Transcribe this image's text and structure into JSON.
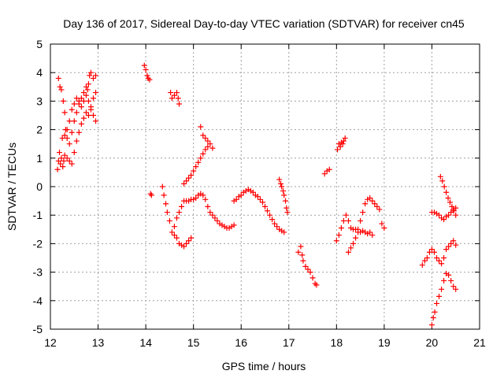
{
  "chart_data": {
    "type": "scatter",
    "title": "Day 136 of 2017, Sidereal Day-to-day VTEC variation (SDTVAR) for receiver cn45",
    "xlabel": "GPS time / hours",
    "ylabel": "SDTVAR / TECUs",
    "xlim": [
      12,
      21
    ],
    "ylim": [
      -5,
      5
    ],
    "xticks": [
      "12",
      "13",
      "14",
      "15",
      "16",
      "17",
      "18",
      "19",
      "20",
      "21"
    ],
    "yticks": [
      "-5",
      "-4",
      "-3",
      "-2",
      "-1",
      "0",
      "1",
      "2",
      "3",
      "4",
      "5"
    ],
    "grid": true,
    "marker": "plus",
    "color": "#ff0000",
    "series": [
      {
        "values": [
          [
            12.15,
            0.6
          ],
          [
            12.17,
            0.9
          ],
          [
            12.19,
            1.2
          ],
          [
            12.21,
            0.8
          ],
          [
            12.23,
            1.0
          ],
          [
            12.26,
            0.7
          ],
          [
            12.28,
            0.9
          ],
          [
            12.3,
            1.1
          ],
          [
            12.35,
            1.0
          ],
          [
            12.4,
            0.9
          ],
          [
            12.45,
            0.8
          ],
          [
            12.5,
            1.2
          ],
          [
            12.55,
            1.6
          ],
          [
            12.6,
            1.9
          ],
          [
            12.65,
            2.2
          ],
          [
            12.7,
            2.4
          ],
          [
            12.75,
            2.6
          ],
          [
            12.8,
            2.5
          ],
          [
            12.85,
            2.7
          ],
          [
            12.9,
            2.5
          ],
          [
            12.95,
            2.3
          ]
        ]
      },
      {
        "values": [
          [
            12.17,
            3.8
          ],
          [
            12.2,
            3.5
          ],
          [
            12.23,
            3.4
          ],
          [
            12.27,
            3.0
          ],
          [
            12.3,
            2.6
          ],
          [
            12.32,
            2.0
          ],
          [
            12.35,
            1.7
          ],
          [
            12.4,
            1.5
          ],
          [
            12.45,
            1.9
          ],
          [
            12.5,
            2.3
          ],
          [
            12.55,
            2.6
          ],
          [
            12.6,
            2.9
          ],
          [
            12.65,
            3.1
          ],
          [
            12.7,
            3.3
          ],
          [
            12.75,
            3.5
          ],
          [
            12.78,
            3.4
          ],
          [
            12.8,
            3.6
          ],
          [
            12.82,
            3.9
          ],
          [
            12.85,
            4.0
          ],
          [
            12.9,
            3.8
          ],
          [
            12.95,
            3.9
          ]
        ]
      },
      {
        "values": [
          [
            12.25,
            1.7
          ],
          [
            12.3,
            1.8
          ],
          [
            12.35,
            2.0
          ],
          [
            12.4,
            2.3
          ],
          [
            12.45,
            2.7
          ],
          [
            12.5,
            2.9
          ],
          [
            12.55,
            3.1
          ],
          [
            12.6,
            3.0
          ],
          [
            12.65,
            2.8
          ],
          [
            12.7,
            3.0
          ],
          [
            12.75,
            3.2
          ],
          [
            12.8,
            3.0
          ],
          [
            12.85,
            2.8
          ],
          [
            12.9,
            3.1
          ],
          [
            12.95,
            3.3
          ]
        ]
      },
      {
        "values": [
          [
            13.97,
            4.25
          ],
          [
            14.0,
            4.1
          ],
          [
            14.03,
            3.9
          ],
          [
            14.05,
            3.8
          ],
          [
            14.08,
            3.75
          ]
        ]
      },
      {
        "values": [
          [
            14.1,
            -0.25
          ],
          [
            14.12,
            -0.3
          ]
        ]
      },
      {
        "values": [
          [
            14.35,
            0.0
          ],
          [
            14.38,
            -0.3
          ],
          [
            14.42,
            -0.6
          ],
          [
            14.45,
            -0.9
          ],
          [
            14.5,
            -1.2
          ],
          [
            14.55,
            -1.6
          ],
          [
            14.6,
            -1.7
          ],
          [
            14.65,
            -1.8
          ],
          [
            14.7,
            -2.0
          ],
          [
            14.75,
            -2.05
          ],
          [
            14.8,
            -2.1
          ],
          [
            14.85,
            -2.0
          ],
          [
            14.9,
            -1.9
          ],
          [
            14.95,
            -1.8
          ]
        ]
      },
      {
        "values": [
          [
            14.52,
            3.3
          ],
          [
            14.55,
            3.1
          ],
          [
            14.6,
            3.2
          ],
          [
            14.65,
            3.3
          ],
          [
            14.68,
            3.1
          ],
          [
            14.7,
            2.9
          ]
        ]
      },
      {
        "values": [
          [
            14.6,
            -1.4
          ],
          [
            14.65,
            -1.1
          ],
          [
            14.7,
            -0.9
          ],
          [
            14.75,
            -0.7
          ],
          [
            14.8,
            -0.5
          ],
          [
            14.85,
            -0.5
          ],
          [
            14.9,
            -0.5
          ],
          [
            14.95,
            -0.45
          ],
          [
            15.0,
            -0.45
          ],
          [
            15.05,
            -0.4
          ],
          [
            15.1,
            -0.3
          ],
          [
            15.15,
            -0.25
          ],
          [
            15.2,
            -0.3
          ],
          [
            15.25,
            -0.45
          ],
          [
            15.3,
            -0.7
          ],
          [
            15.35,
            -0.9
          ],
          [
            15.4,
            -1.0
          ],
          [
            15.45,
            -1.1
          ],
          [
            15.5,
            -1.2
          ],
          [
            15.55,
            -1.3
          ],
          [
            15.6,
            -1.35
          ],
          [
            15.65,
            -1.4
          ],
          [
            15.7,
            -1.45
          ],
          [
            15.75,
            -1.45
          ],
          [
            15.8,
            -1.4
          ],
          [
            15.85,
            -1.35
          ]
        ]
      },
      {
        "values": [
          [
            14.8,
            0.1
          ],
          [
            14.85,
            0.2
          ],
          [
            14.9,
            0.3
          ],
          [
            14.95,
            0.4
          ],
          [
            15.0,
            0.55
          ],
          [
            15.05,
            0.7
          ],
          [
            15.1,
            0.85
          ],
          [
            15.15,
            1.0
          ],
          [
            15.2,
            1.15
          ],
          [
            15.25,
            1.3
          ],
          [
            15.3,
            1.4
          ]
        ]
      },
      {
        "values": [
          [
            15.15,
            2.1
          ],
          [
            15.2,
            1.8
          ],
          [
            15.25,
            1.7
          ],
          [
            15.3,
            1.6
          ],
          [
            15.35,
            1.5
          ],
          [
            15.4,
            1.35
          ]
        ]
      },
      {
        "values": [
          [
            15.85,
            -0.5
          ],
          [
            15.9,
            -0.45
          ],
          [
            15.95,
            -0.35
          ],
          [
            16.0,
            -0.3
          ],
          [
            16.05,
            -0.2
          ],
          [
            16.1,
            -0.15
          ],
          [
            16.15,
            -0.1
          ],
          [
            16.2,
            -0.15
          ],
          [
            16.25,
            -0.2
          ],
          [
            16.3,
            -0.3
          ],
          [
            16.35,
            -0.35
          ],
          [
            16.4,
            -0.45
          ],
          [
            16.45,
            -0.55
          ],
          [
            16.5,
            -0.7
          ],
          [
            16.55,
            -0.85
          ],
          [
            16.6,
            -1.0
          ],
          [
            16.65,
            -1.15
          ],
          [
            16.7,
            -1.3
          ],
          [
            16.75,
            -1.4
          ],
          [
            16.8,
            -1.5
          ],
          [
            16.85,
            -1.55
          ],
          [
            16.9,
            -1.6
          ]
        ]
      },
      {
        "values": [
          [
            16.8,
            0.25
          ],
          [
            16.83,
            0.1
          ],
          [
            16.85,
            0.0
          ],
          [
            16.88,
            -0.15
          ],
          [
            16.9,
            -0.3
          ],
          [
            16.93,
            -0.5
          ],
          [
            16.95,
            -0.75
          ],
          [
            16.97,
            -0.9
          ]
        ]
      },
      {
        "values": [
          [
            17.2,
            -2.3
          ],
          [
            17.25,
            -2.1
          ],
          [
            17.28,
            -2.4
          ],
          [
            17.3,
            -2.6
          ],
          [
            17.35,
            -2.8
          ],
          [
            17.4,
            -2.9
          ],
          [
            17.45,
            -3.0
          ],
          [
            17.5,
            -3.2
          ],
          [
            17.55,
            -3.4
          ],
          [
            17.58,
            -3.45
          ]
        ]
      },
      {
        "values": [
          [
            17.75,
            0.45
          ],
          [
            17.8,
            0.55
          ],
          [
            17.85,
            0.6
          ]
        ]
      },
      {
        "values": [
          [
            18.02,
            1.3
          ],
          [
            18.05,
            1.5
          ],
          [
            18.08,
            1.4
          ],
          [
            18.1,
            1.55
          ],
          [
            18.13,
            1.5
          ],
          [
            18.15,
            1.6
          ],
          [
            18.18,
            1.7
          ]
        ]
      },
      {
        "values": [
          [
            18.0,
            -1.9
          ],
          [
            18.05,
            -1.7
          ],
          [
            18.1,
            -1.45
          ],
          [
            18.15,
            -1.2
          ],
          [
            18.2,
            -1.0
          ],
          [
            18.25,
            -1.2
          ],
          [
            18.3,
            -1.45
          ],
          [
            18.35,
            -1.5
          ],
          [
            18.4,
            -1.5
          ],
          [
            18.45,
            -1.6
          ],
          [
            18.5,
            -1.6
          ],
          [
            18.55,
            -1.55
          ],
          [
            18.6,
            -1.6
          ],
          [
            18.65,
            -1.65
          ],
          [
            18.7,
            -1.6
          ],
          [
            18.75,
            -1.7
          ]
        ]
      },
      {
        "values": [
          [
            18.25,
            -2.3
          ],
          [
            18.3,
            -2.15
          ],
          [
            18.35,
            -2.0
          ],
          [
            18.4,
            -1.8
          ],
          [
            18.45,
            -1.5
          ],
          [
            18.5,
            -1.2
          ],
          [
            18.55,
            -0.9
          ],
          [
            18.6,
            -0.6
          ],
          [
            18.65,
            -0.45
          ],
          [
            18.7,
            -0.4
          ],
          [
            18.75,
            -0.5
          ],
          [
            18.8,
            -0.6
          ],
          [
            18.85,
            -0.7
          ],
          [
            18.9,
            -0.8
          ],
          [
            18.95,
            -1.3
          ],
          [
            19.0,
            -1.45
          ]
        ]
      },
      {
        "values": [
          [
            19.8,
            -2.75
          ],
          [
            19.85,
            -2.6
          ],
          [
            19.9,
            -2.5
          ],
          [
            19.95,
            -2.3
          ],
          [
            20.0,
            -2.2
          ],
          [
            20.05,
            -2.3
          ],
          [
            20.1,
            -2.5
          ],
          [
            20.15,
            -2.6
          ],
          [
            20.2,
            -2.7
          ],
          [
            20.25,
            -2.5
          ],
          [
            20.3,
            -2.2
          ],
          [
            20.35,
            -2.1
          ],
          [
            20.4,
            -2.0
          ],
          [
            20.45,
            -1.9
          ],
          [
            20.5,
            -2.05
          ]
        ]
      },
      {
        "values": [
          [
            20.0,
            -0.9
          ],
          [
            20.05,
            -0.9
          ],
          [
            20.1,
            -0.95
          ],
          [
            20.15,
            -1.0
          ],
          [
            20.2,
            -1.1
          ],
          [
            20.25,
            -1.15
          ],
          [
            20.3,
            -1.05
          ],
          [
            20.35,
            -1.0
          ],
          [
            20.4,
            -0.9
          ],
          [
            20.45,
            -0.8
          ],
          [
            20.5,
            -0.75
          ]
        ]
      },
      {
        "values": [
          [
            20.18,
            0.35
          ],
          [
            20.22,
            0.2
          ],
          [
            20.26,
            0.0
          ],
          [
            20.3,
            -0.2
          ],
          [
            20.34,
            -0.4
          ],
          [
            20.38,
            -0.55
          ],
          [
            20.42,
            -0.7
          ],
          [
            20.46,
            -0.85
          ],
          [
            20.5,
            -1.0
          ]
        ]
      },
      {
        "values": [
          [
            20.0,
            -4.85
          ],
          [
            20.03,
            -4.6
          ],
          [
            20.06,
            -4.4
          ],
          [
            20.1,
            -4.1
          ],
          [
            20.15,
            -3.85
          ],
          [
            20.2,
            -3.6
          ],
          [
            20.25,
            -3.3
          ],
          [
            20.3,
            -3.05
          ],
          [
            20.35,
            -3.1
          ],
          [
            20.4,
            -3.3
          ],
          [
            20.45,
            -3.5
          ],
          [
            20.5,
            -3.6
          ]
        ]
      }
    ]
  }
}
